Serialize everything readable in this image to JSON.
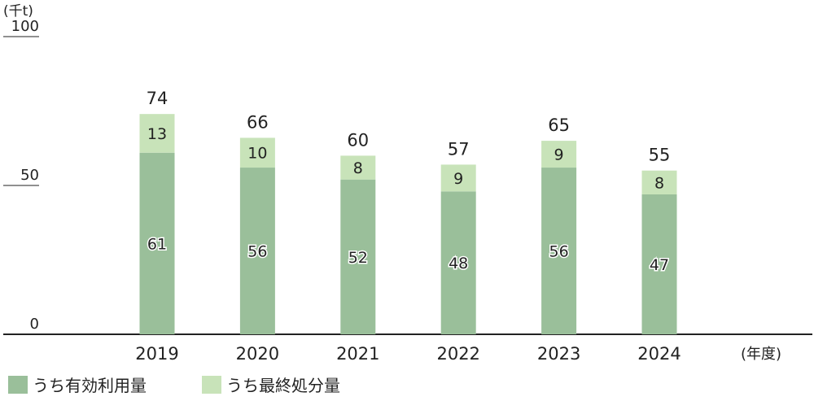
{
  "chart_data": {
    "type": "bar",
    "stacked": true,
    "unit_label": "(千t)",
    "xunit_label": "(年度)",
    "categories": [
      "2019",
      "2020",
      "2021",
      "2022",
      "2023",
      "2024"
    ],
    "yticks": [
      "100",
      "50",
      "0"
    ],
    "ylim": [
      0,
      100
    ],
    "series": [
      {
        "name": "うち有効利用量",
        "values": [
          61,
          56,
          52,
          48,
          56,
          47
        ],
        "color": "#9abf9a"
      },
      {
        "name": "うち最終処分量",
        "values": [
          13,
          10,
          8,
          9,
          9,
          8
        ],
        "color": "#c8e3b9"
      }
    ],
    "totals": [
      74,
      66,
      60,
      57,
      65,
      55
    ],
    "grid": false,
    "legend_position": "bottom-left"
  }
}
